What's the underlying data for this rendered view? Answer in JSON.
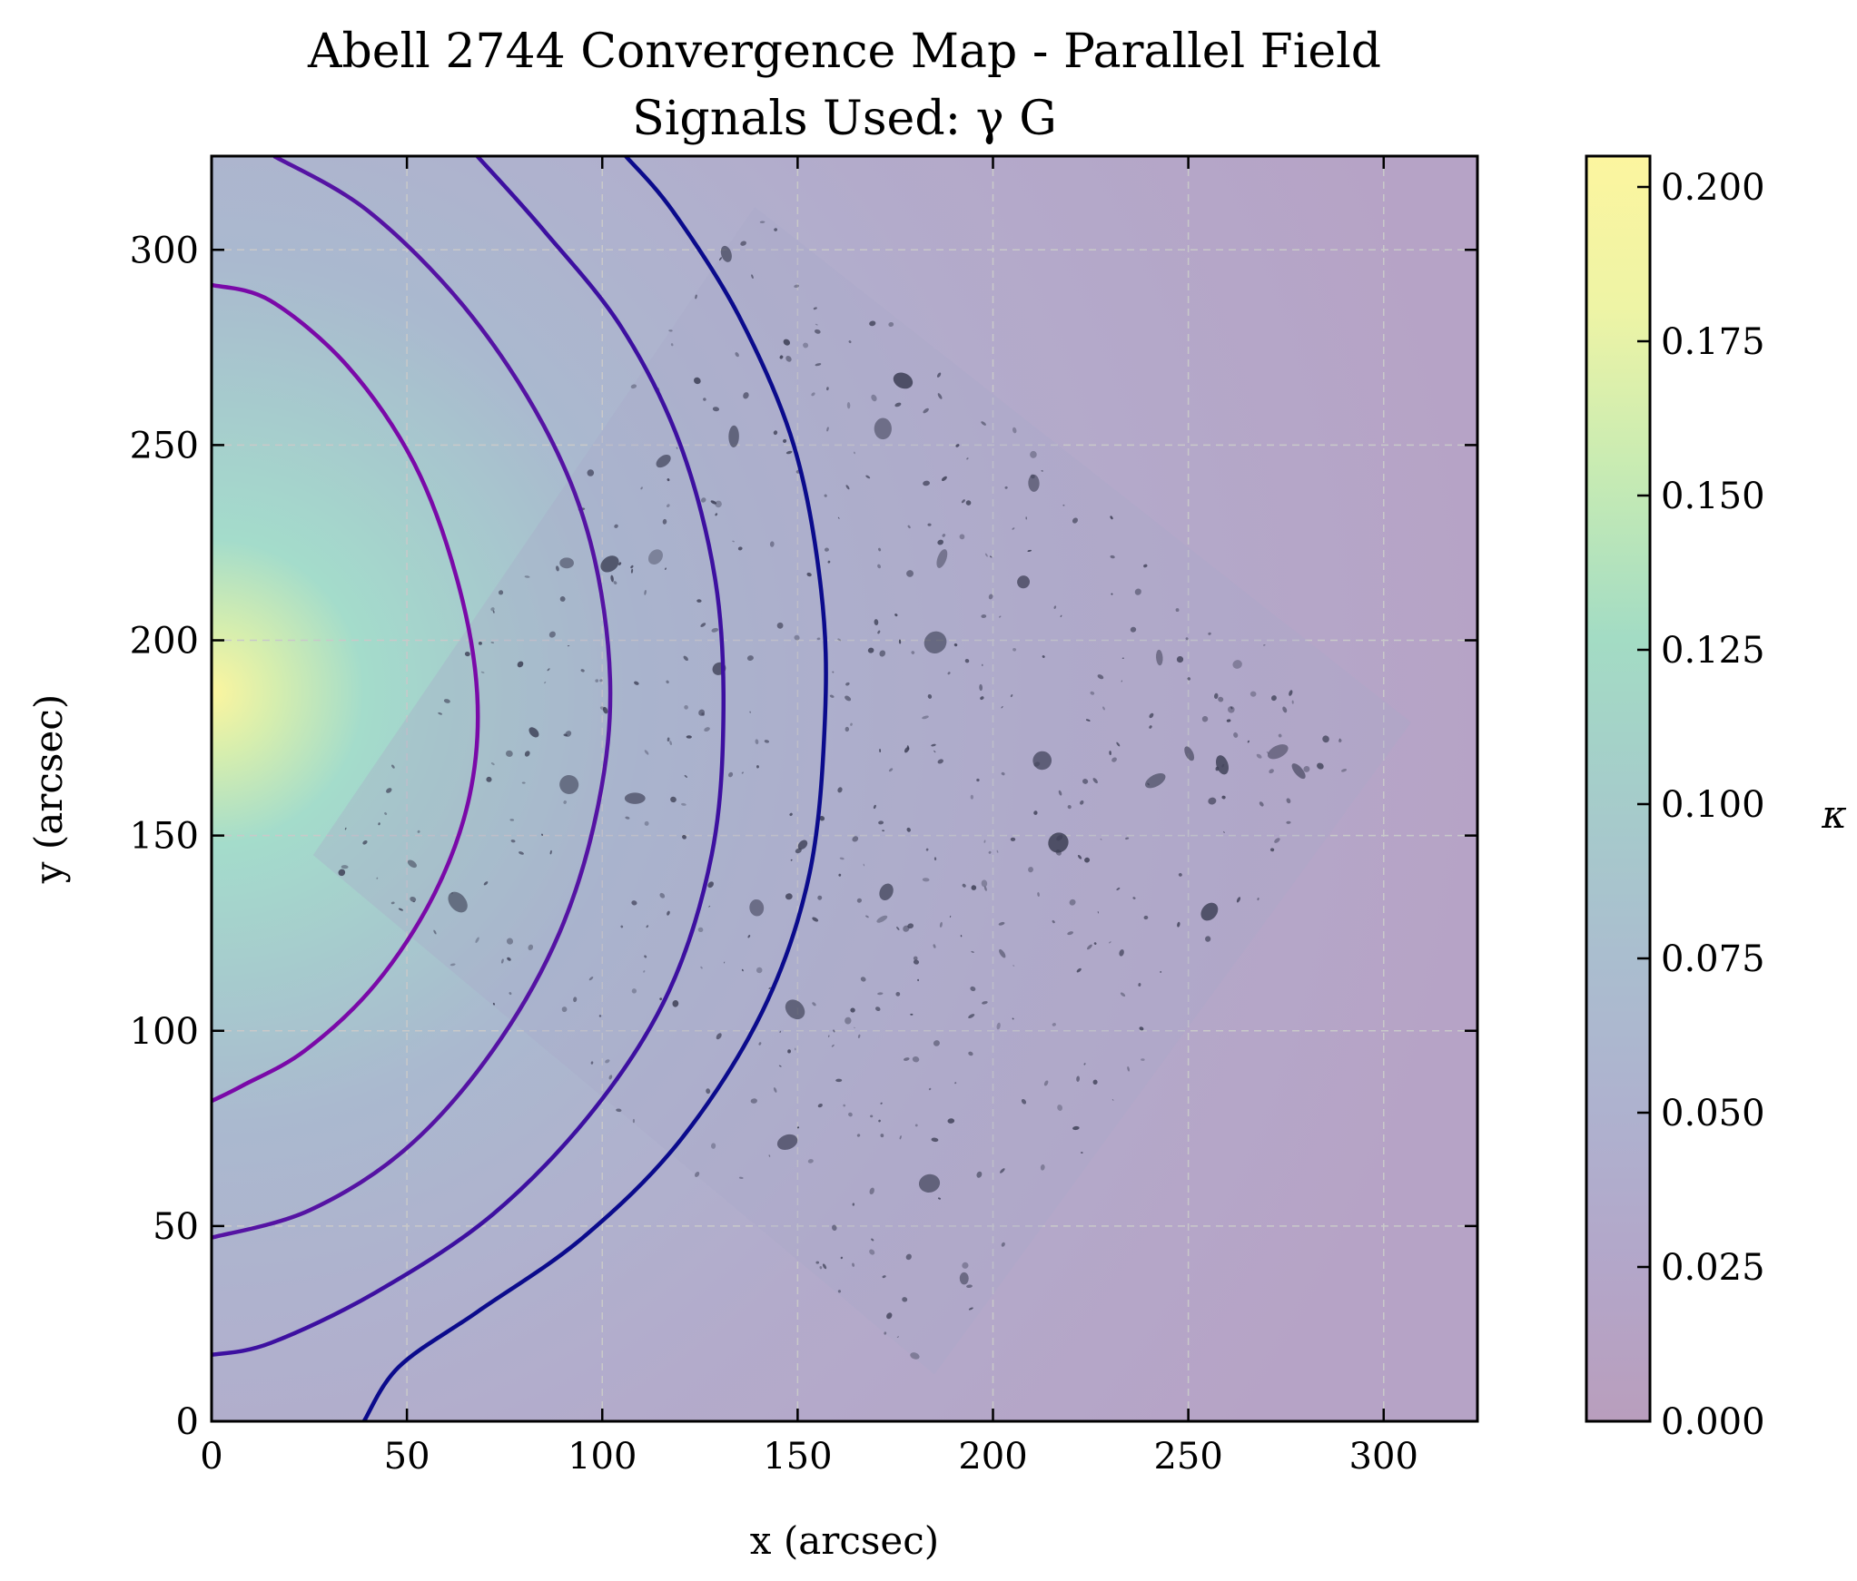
{
  "chart_data": {
    "type": "heatmap",
    "title": "Abell 2744 Convergence Map - Parallel Field",
    "subtitle": "Signals Used: γ G",
    "xlabel": "x (arcsec)",
    "ylabel": "y (arcsec)",
    "xlim": [
      0,
      324
    ],
    "ylim": [
      0,
      324
    ],
    "xticks": [
      0,
      50,
      100,
      150,
      200,
      250,
      300
    ],
    "yticks": [
      0,
      50,
      100,
      150,
      200,
      250,
      300
    ],
    "grid": true,
    "colorbar": {
      "label": "κ",
      "min": 0.0,
      "max": 0.205,
      "ticks": [
        "0.000",
        "0.025",
        "0.050",
        "0.075",
        "0.100",
        "0.125",
        "0.150",
        "0.175",
        "0.200"
      ],
      "colormap": [
        "#b99ebd",
        "#b2a8cc",
        "#adb6d0",
        "#a6c6cc",
        "#a2d9c6",
        "#c7ebb3",
        "#eef4a5",
        "#fcf59f"
      ]
    },
    "peak": {
      "x": 0,
      "y": 180,
      "kappa": 0.205
    },
    "contours": [
      {
        "name": "contour-1",
        "color": "#7a09a8",
        "points": [
          [
            0,
            291
          ],
          [
            15,
            287
          ],
          [
            35,
            270
          ],
          [
            52,
            245
          ],
          [
            63,
            215
          ],
          [
            68,
            186
          ],
          [
            66,
            160
          ],
          [
            57,
            135
          ],
          [
            42,
            112
          ],
          [
            24,
            95
          ],
          [
            8,
            86
          ],
          [
            0,
            82
          ]
        ]
      },
      {
        "name": "contour-2",
        "color": "#5513a3",
        "points": [
          [
            16,
            324
          ],
          [
            40,
            310
          ],
          [
            65,
            285
          ],
          [
            85,
            255
          ],
          [
            97,
            225
          ],
          [
            102,
            190
          ],
          [
            99,
            158
          ],
          [
            89,
            125
          ],
          [
            72,
            95
          ],
          [
            50,
            70
          ],
          [
            25,
            54
          ],
          [
            0,
            47
          ]
        ]
      },
      {
        "name": "contour-3",
        "color": "#3d10a0",
        "points": [
          [
            68,
            324
          ],
          [
            85,
            305
          ],
          [
            105,
            280
          ],
          [
            120,
            250
          ],
          [
            129,
            215
          ],
          [
            131,
            180
          ],
          [
            128,
            145
          ],
          [
            117,
            110
          ],
          [
            98,
            80
          ],
          [
            72,
            53
          ],
          [
            42,
            33
          ],
          [
            15,
            20
          ],
          [
            0,
            17
          ]
        ]
      },
      {
        "name": "contour-4",
        "color": "#0b0b8c",
        "points": [
          [
            106,
            324
          ],
          [
            118,
            310
          ],
          [
            135,
            283
          ],
          [
            149,
            250
          ],
          [
            156,
            213
          ],
          [
            157,
            180
          ],
          [
            153,
            140
          ],
          [
            141,
            105
          ],
          [
            120,
            72
          ],
          [
            95,
            47
          ],
          [
            68,
            28
          ],
          [
            48,
            14
          ],
          [
            39,
            0
          ]
        ]
      }
    ],
    "overlay_image_corners": [
      [
        139,
        311
      ],
      [
        307,
        179
      ],
      [
        185,
        12
      ],
      [
        26,
        145
      ]
    ]
  }
}
